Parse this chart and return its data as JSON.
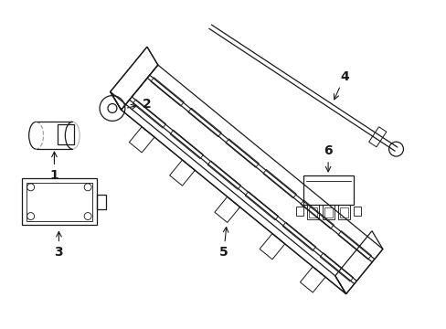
{
  "bg_color": "#ffffff",
  "line_color": "#1a1a1a",
  "lw": 0.9,
  "font_size": 10,
  "labels": [
    "1",
    "2",
    "3",
    "4",
    "5",
    "6"
  ]
}
